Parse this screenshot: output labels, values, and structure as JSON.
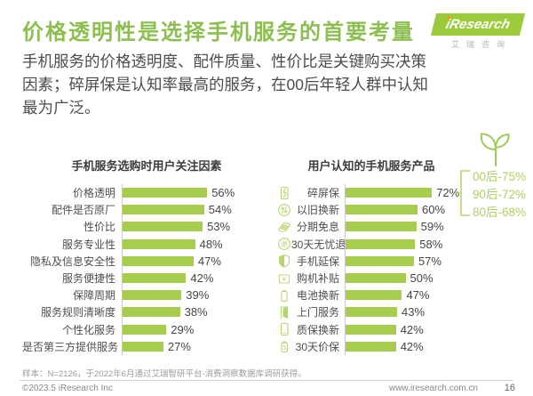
{
  "page": {
    "title": "价格透明性是选择手机服务的首要考量",
    "subtitle": "手机服务的价格透明度、配件质量、性价比是关键购买决策\n因素；碎屏保是认知率最高的服务，在00后年轻人群中认知\n最为广泛。",
    "footnote": "样本：N=2126，于2022年6月通过艾瑞智研平台-消费洞察数据库调研获得。",
    "copyright": "©2023.5 iResearch Inc",
    "website": "www.iresearch.com.cn",
    "page_number": "16"
  },
  "logo": {
    "brand": "iResearch",
    "brand_cn": "艾瑞咨询"
  },
  "colors": {
    "title_green": "#8CBF50",
    "bar_green": "#A7CD4E",
    "light_green": "#B5D66E",
    "logo_green": "#9BCB3B",
    "logo_dot_orange": "#F39800",
    "text_dark": "#4c4c4c"
  },
  "chart_data": [
    {
      "type": "bar",
      "orientation": "horizontal",
      "title": "手机服务选购时用户关注因素",
      "unit": "%",
      "grid": false,
      "value_labels": true,
      "categories": [
        "价格透明",
        "配件是否原厂",
        "性价比",
        "服务专业性",
        "隐私及信息安全性",
        "服务便捷性",
        "保障周期",
        "服务规则清晰度",
        "个性化服务",
        "是否第三方提供服务"
      ],
      "values": [
        56,
        54,
        53,
        48,
        47,
        42,
        39,
        38,
        29,
        27
      ]
    },
    {
      "type": "bar",
      "orientation": "horizontal",
      "title": "用户认知的手机服务产品",
      "unit": "%",
      "grid": false,
      "value_labels": true,
      "categories": [
        "碎屏保",
        "以旧换新",
        "分期免息",
        "30天无忧退",
        "手机延保",
        "购机补贴",
        "电池换新",
        "上门服务",
        "质保换新",
        "30天价保"
      ],
      "values": [
        72,
        60,
        59,
        58,
        57,
        50,
        47,
        43,
        42,
        42
      ],
      "icons": [
        "broken-screen-phone",
        "trade-in-arrows",
        "installment-coins",
        "return-guarantee",
        "warranty-shield",
        "purchase-subsidy",
        "battery-renewal",
        "door-to-door-service",
        "phone-warranty-renewal",
        "price-protection"
      ],
      "annotation": {
        "target": "碎屏保",
        "items": [
          "00后-75%",
          "90后-72%",
          "80后-68%"
        ]
      }
    }
  ]
}
